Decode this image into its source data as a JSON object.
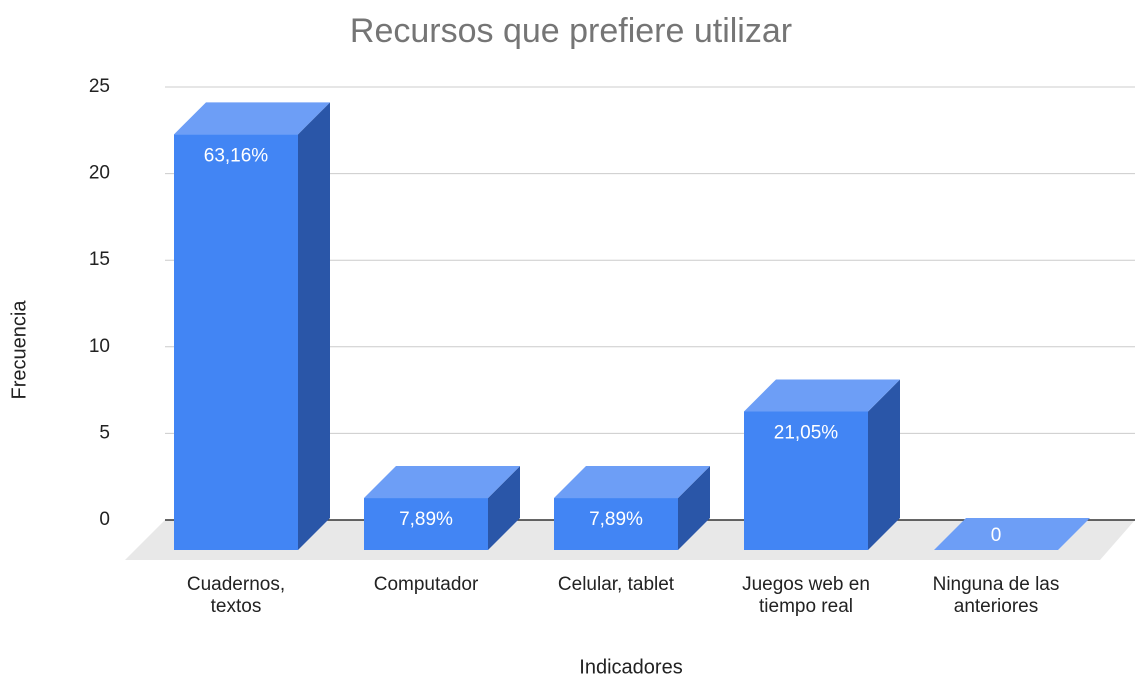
{
  "chart_data": {
    "type": "bar3d",
    "title": "Recursos que prefiere utilizar",
    "x_label": "Indicadores",
    "y_label": "Frecuencia",
    "categories": [
      "Cuadernos, textos",
      "Computador",
      "Celular, tablet",
      "Juegos web en tiempo real",
      "Ninguna de las anteriores"
    ],
    "values": [
      24,
      3,
      3,
      8,
      0
    ],
    "value_labels": [
      "63,16%",
      "7,89%",
      "7,89%",
      "21,05%",
      "0"
    ],
    "color": "#4285f4",
    "ylim": [
      0,
      25
    ],
    "yticks": [
      0,
      5,
      10,
      15,
      20,
      25
    ],
    "grid": true
  }
}
